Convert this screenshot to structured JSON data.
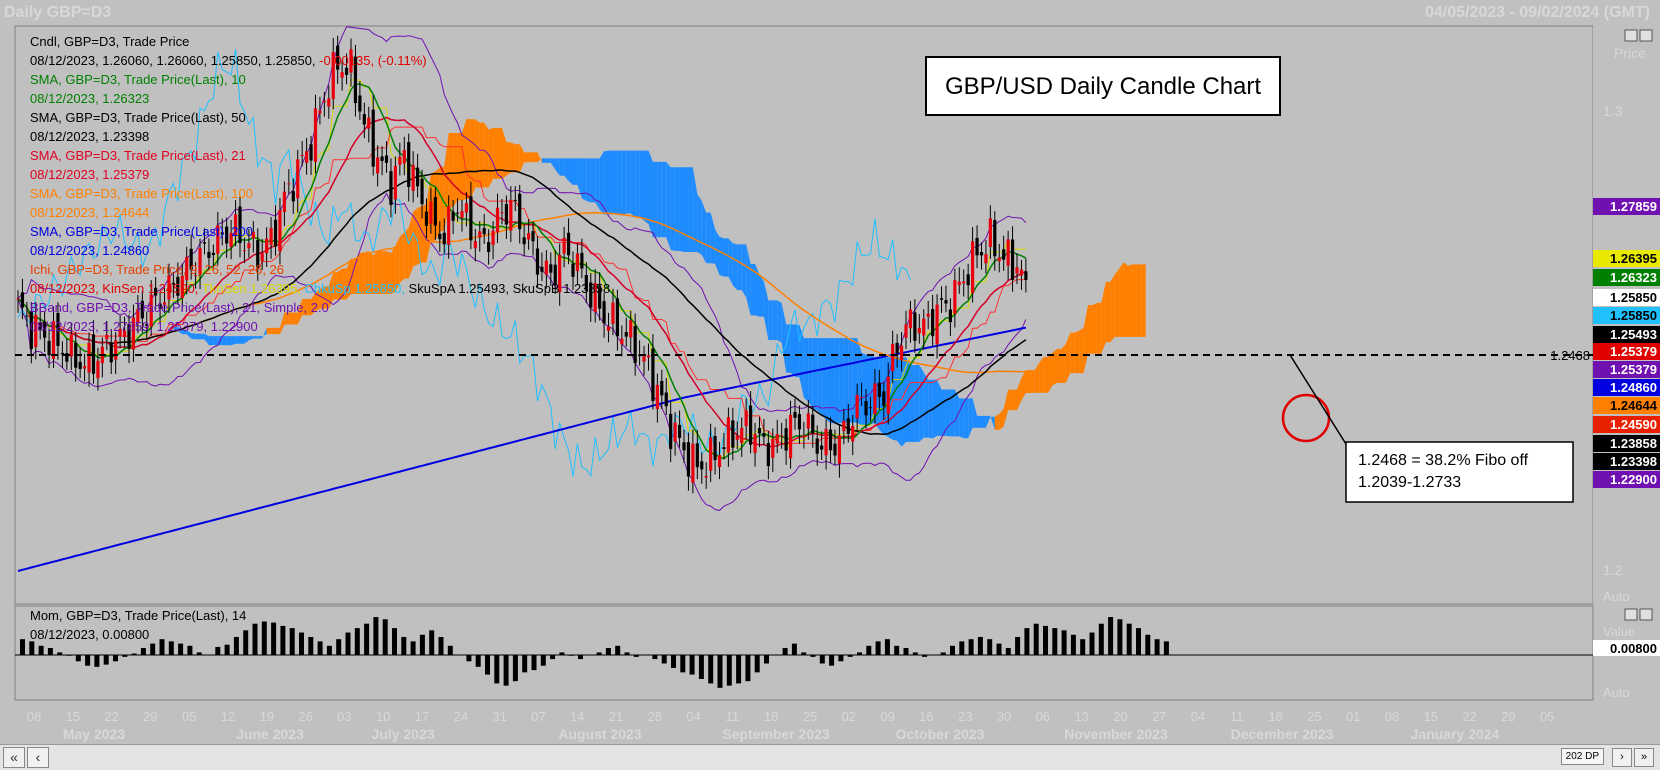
{
  "window": {
    "title": "Daily GBP=D3",
    "range": "04/05/2023 - 09/02/2024 (GMT)"
  },
  "colors": {
    "background": "#c0c0c0",
    "bull_candle": "#e8000c",
    "bear_candle": "#000000",
    "sma10": "#008000",
    "sma50": "#000000",
    "sma21": "#d4002a",
    "sma100": "#ff8000",
    "sma200": "#0000e0",
    "kumo_bull": "#ff8000",
    "kumo_bear": "#1e8cff",
    "kinsen": "#ff3030",
    "tenkan": "#d8d800",
    "chikou": "#20c0ff",
    "bband": "#7010b0",
    "fibo_circle": "#e00000"
  },
  "legend": [
    {
      "text": "Cndl, GBP=D3, Trade Price",
      "color": "#000000"
    },
    {
      "text": "08/12/2023, 1.26060, 1.26060, 1.25850, 1.25850,",
      "color": "#000000",
      "extra": "-0.00135, (-0.11%)",
      "extra_color": "#e00000"
    },
    {
      "text": "SMA, GBP=D3, Trade Price(Last),  10",
      "color": "#008000"
    },
    {
      "text": "08/12/2023, 1.26323",
      "color": "#008000"
    },
    {
      "text": "SMA, GBP=D3, Trade Price(Last),  50",
      "color": "#000000"
    },
    {
      "text": "08/12/2023, 1.23398",
      "color": "#000000"
    },
    {
      "text": "SMA, GBP=D3, Trade Price(Last),  21",
      "color": "#e00020"
    },
    {
      "text": "08/12/2023, 1.25379",
      "color": "#e00020"
    },
    {
      "text": "SMA, GBP=D3, Trade Price(Last),  100",
      "color": "#ff8000"
    },
    {
      "text": "08/12/2023, 1.24644",
      "color": "#ff8000"
    },
    {
      "text": "SMA, GBP=D3, Trade Price(Last),  200",
      "color": "#0000e0"
    },
    {
      "text": "08/12/2023, 1.24860",
      "color": "#0000e0"
    },
    {
      "text": "Ichi, GBP=D3, Trade Price,  9, 26, 52, 26, 26",
      "color": "#e84000"
    },
    {
      "text": "08/12/2023, KinSen 1.24590,",
      "color": "#e00000",
      "extra": "TknSen 1.26395,",
      "extra_color": "#d8d800",
      "extra2": "ChkuSp 1.25850,",
      "extra2_color": "#20c0ff",
      "extra3": "SkuSpA 1.25493, SkuSpB 1.23858",
      "extra3_color": "#000000"
    },
    {
      "text": "BBand, GBP=D3, Trade Price(Last),  21, Simple,  2.0",
      "color": "#7010b0"
    },
    {
      "text": "08/12/2023, 1.27859, 1.25379, 1.22900",
      "color": "#7010b0"
    }
  ],
  "annotation": {
    "title": "GBP/USD Daily Candle Chart",
    "note_line1": "1.2468 = 38.2% Fibo off",
    "note_line2": "1.2039-1.2733",
    "level_label": "1.2468"
  },
  "price_axis": {
    "header": "Price",
    "ticks": [
      "1.3",
      "1.2"
    ],
    "tags": [
      {
        "value": "1.27859",
        "bg": "#7010b0",
        "fg": "#ffffff"
      },
      {
        "value": "1.26395",
        "bg": "#e8e800",
        "fg": "#000000"
      },
      {
        "value": "1.26323",
        "bg": "#008000",
        "fg": "#ffffff"
      },
      {
        "value": "1.25850",
        "bg": "#ffffff",
        "fg": "#000000"
      },
      {
        "value": "1.25850",
        "bg": "#20c0ff",
        "fg": "#000000"
      },
      {
        "value": "1.25493",
        "bg": "#000000",
        "fg": "#ffffff"
      },
      {
        "value": "1.25379",
        "bg": "#e00000",
        "fg": "#ffffff"
      },
      {
        "value": "1.25379",
        "bg": "#7010b0",
        "fg": "#ffffff"
      },
      {
        "value": "1.24860",
        "bg": "#0000e0",
        "fg": "#ffffff"
      },
      {
        "value": "1.24644",
        "bg": "#ff8000",
        "fg": "#000000"
      },
      {
        "value": "1.24590",
        "bg": "#e82000",
        "fg": "#ffffff"
      },
      {
        "value": "1.23858",
        "bg": "#000000",
        "fg": "#ffffff"
      },
      {
        "value": "1.23398",
        "bg": "#000000",
        "fg": "#ffffff"
      },
      {
        "value": "1.22900",
        "bg": "#7010b0",
        "fg": "#ffffff"
      }
    ],
    "auto": "Auto"
  },
  "momentum": {
    "label1": "Mom, GBP=D3, Trade Price(Last),  14",
    "label2": "08/12/2023, 0.00800",
    "axis_header": "Value",
    "value_tag": "0.00800",
    "auto": "Auto"
  },
  "time_axis": {
    "days": [
      "08",
      "15",
      "22",
      "29",
      "05",
      "12",
      "19",
      "26",
      "03",
      "10",
      "17",
      "24",
      "31",
      "07",
      "14",
      "21",
      "28",
      "04",
      "11",
      "18",
      "25",
      "02",
      "09",
      "16",
      "23",
      "30",
      "06",
      "13",
      "20",
      "27",
      "04",
      "11",
      "18",
      "25",
      "01",
      "08",
      "15",
      "22",
      "29",
      "05"
    ],
    "months": [
      "May 2023",
      "June 2023",
      "July 2023",
      "August 2023",
      "September 2023",
      "October 2023",
      "November 2023",
      "December 2023",
      "January 2024"
    ]
  },
  "footer": {
    "zoom": "202 DP"
  },
  "chart_data": {
    "type": "candlestick",
    "title": "GBP/USD Daily Candle Chart",
    "ylim": [
      1.18,
      1.32
    ],
    "momentum_ylim": [
      -0.045,
      0.04
    ],
    "horizontal_line": 1.2468,
    "fibo_note": "1.2468 = 38.2% Fibo off 1.2039-1.2733",
    "last_candle": {
      "date": "08/12/2023",
      "open": 1.2606,
      "high": 1.2606,
      "low": 1.2585,
      "close": 1.2585
    },
    "anchors": [
      [
        0,
        1.252
      ],
      [
        3,
        1.247
      ],
      [
        6,
        1.245
      ],
      [
        9,
        1.243
      ],
      [
        12,
        1.24
      ],
      [
        15,
        1.238
      ],
      [
        18,
        1.24
      ],
      [
        21,
        1.243
      ],
      [
        24,
        1.245
      ],
      [
        27,
        1.249
      ],
      [
        30,
        1.252
      ],
      [
        33,
        1.255
      ],
      [
        36,
        1.258
      ],
      [
        39,
        1.262
      ],
      [
        42,
        1.265
      ],
      [
        45,
        1.268
      ],
      [
        48,
        1.271
      ],
      [
        51,
        1.268
      ],
      [
        54,
        1.265
      ],
      [
        57,
        1.268
      ],
      [
        60,
        1.278
      ],
      [
        63,
        1.285
      ],
      [
        66,
        1.292
      ],
      [
        69,
        1.303
      ],
      [
        72,
        1.311
      ],
      [
        75,
        1.309
      ],
      [
        78,
        1.296
      ],
      [
        81,
        1.288
      ],
      [
        84,
        1.282
      ],
      [
        87,
        1.289
      ],
      [
        90,
        1.28
      ],
      [
        93,
        1.273
      ],
      [
        96,
        1.269
      ],
      [
        99,
        1.277
      ],
      [
        102,
        1.271
      ],
      [
        105,
        1.267
      ],
      [
        108,
        1.273
      ],
      [
        111,
        1.277
      ],
      [
        114,
        1.27
      ],
      [
        117,
        1.263
      ],
      [
        120,
        1.259
      ],
      [
        123,
        1.266
      ],
      [
        126,
        1.262
      ],
      [
        129,
        1.255
      ],
      [
        132,
        1.25
      ],
      [
        135,
        1.247
      ],
      [
        138,
        1.244
      ],
      [
        141,
        1.239
      ],
      [
        144,
        1.232
      ],
      [
        147,
        1.223
      ],
      [
        150,
        1.217
      ],
      [
        153,
        1.213
      ],
      [
        156,
        1.215
      ],
      [
        159,
        1.219
      ],
      [
        162,
        1.222
      ],
      [
        165,
        1.223
      ],
      [
        168,
        1.218
      ],
      [
        171,
        1.219
      ],
      [
        174,
        1.223
      ],
      [
        177,
        1.224
      ],
      [
        180,
        1.219
      ],
      [
        183,
        1.218
      ],
      [
        186,
        1.221
      ],
      [
        189,
        1.228
      ],
      [
        192,
        1.229
      ],
      [
        195,
        1.231
      ],
      [
        198,
        1.243
      ],
      [
        201,
        1.248
      ],
      [
        204,
        1.247
      ],
      [
        207,
        1.251
      ],
      [
        210,
        1.253
      ],
      [
        213,
        1.259
      ],
      [
        216,
        1.265
      ],
      [
        219,
        1.268
      ],
      [
        222,
        1.264
      ],
      [
        225,
        1.262
      ],
      [
        227,
        1.2585
      ]
    ],
    "momentum_values": [
      0.01,
      0.008,
      0.004,
      0.002,
      -0.002,
      -0.005,
      -0.01,
      -0.014,
      -0.015,
      -0.013,
      -0.01,
      -0.006,
      -0.003,
      0.002,
      0.006,
      0.01,
      0.008,
      0.006,
      0.004,
      -0.002,
      -0.004,
      0.003,
      0.005,
      0.012,
      0.018,
      0.024,
      0.026,
      0.025,
      0.022,
      0.02,
      0.016,
      0.012,
      0.008,
      0.004,
      0.01,
      0.016,
      0.02,
      0.024,
      0.03,
      0.028,
      0.02,
      0.012,
      0.008,
      0.014,
      0.018,
      0.012,
      0.004,
      -0.004,
      -0.01,
      -0.015,
      -0.022,
      -0.03,
      -0.032,
      -0.028,
      -0.02,
      -0.018,
      -0.014,
      -0.008,
      -0.002,
      -0.005,
      -0.008,
      -0.004,
      -0.002,
      0.002,
      0.004,
      -0.002,
      -0.006,
      -0.004,
      -0.008,
      -0.012,
      -0.016,
      -0.02,
      -0.022,
      -0.026,
      -0.03,
      -0.034,
      -0.032,
      -0.03,
      -0.028,
      -0.02,
      -0.012,
      -0.004,
      0.002,
      0.006,
      -0.002,
      -0.006,
      -0.012,
      -0.014,
      -0.01,
      -0.006,
      -0.002,
      0.004,
      0.008,
      0.01,
      0.004,
      0.002,
      -0.002,
      -0.006,
      -0.004,
      -0.002,
      0.004,
      0.008,
      0.01,
      0.012,
      0.01,
      0.006,
      0.002,
      0.012,
      0.02,
      0.024,
      0.022,
      0.02,
      0.018,
      0.014,
      0.01,
      0.016,
      0.024,
      0.03,
      0.028,
      0.024,
      0.02,
      0.014,
      0.01,
      0.008
    ]
  }
}
